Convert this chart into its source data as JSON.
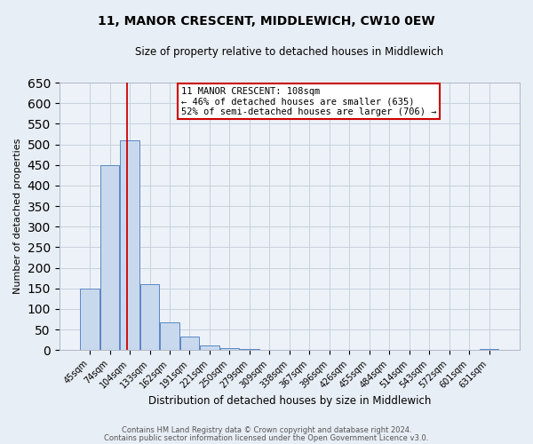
{
  "title": "11, MANOR CRESCENT, MIDDLEWICH, CW10 0EW",
  "subtitle": "Size of property relative to detached houses in Middlewich",
  "xlabel": "Distribution of detached houses by size in Middlewich",
  "ylabel": "Number of detached properties",
  "bar_labels": [
    "45sqm",
    "74sqm",
    "104sqm",
    "133sqm",
    "162sqm",
    "191sqm",
    "221sqm",
    "250sqm",
    "279sqm",
    "309sqm",
    "338sqm",
    "367sqm",
    "396sqm",
    "426sqm",
    "455sqm",
    "484sqm",
    "514sqm",
    "543sqm",
    "572sqm",
    "601sqm",
    "631sqm"
  ],
  "bar_heights": [
    150,
    450,
    510,
    160,
    67,
    32,
    12,
    5,
    2,
    1,
    0,
    0,
    0,
    0,
    0,
    0,
    0,
    0,
    0,
    0,
    2
  ],
  "bar_color": "#c9d9ed",
  "bar_edge_color": "#5b87c5",
  "annotation_box_text": "11 MANOR CRESCENT: 108sqm\n← 46% of detached houses are smaller (635)\n52% of semi-detached houses are larger (706) →",
  "annotation_box_color": "#ffffff",
  "annotation_box_edge_color": "#cc0000",
  "annotation_line_color": "#cc0000",
  "ylim": [
    0,
    650
  ],
  "yticks": [
    0,
    50,
    100,
    150,
    200,
    250,
    300,
    350,
    400,
    450,
    500,
    550,
    600,
    650
  ],
  "bg_color": "#e8eef5",
  "plot_bg_color": "#edf2f8",
  "footer_line1": "Contains HM Land Registry data © Crown copyright and database right 2024.",
  "footer_line2": "Contains public sector information licensed under the Open Government Licence v3.0."
}
